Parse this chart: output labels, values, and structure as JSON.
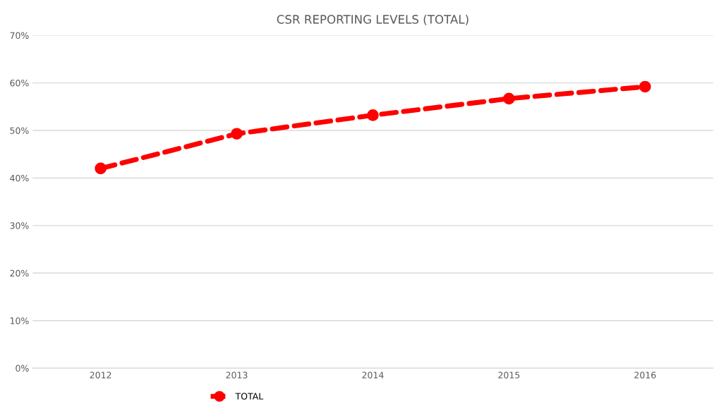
{
  "chart_data": {
    "type": "line",
    "title": "CSR REPORTING LEVELS (TOTAL)",
    "categories": [
      "2012",
      "2013",
      "2014",
      "2015",
      "2016"
    ],
    "series": [
      {
        "name": "TOTAL",
        "color": "#ff0000",
        "values": [
          42,
          49.3,
          53.2,
          56.7,
          59.2
        ]
      }
    ],
    "ylim": [
      0,
      70
    ],
    "yticks": [
      {
        "value": 0,
        "label": "0%"
      },
      {
        "value": 10,
        "label": "10%"
      },
      {
        "value": 20,
        "label": "20%"
      },
      {
        "value": 30,
        "label": "30%"
      },
      {
        "value": 40,
        "label": "40%"
      },
      {
        "value": 50,
        "label": "50%"
      },
      {
        "value": 60,
        "label": "60%"
      },
      {
        "value": 70,
        "label": "70%"
      }
    ],
    "grid": "y",
    "legend": "bottom left",
    "marker": "circle",
    "line_style": "dashed"
  }
}
